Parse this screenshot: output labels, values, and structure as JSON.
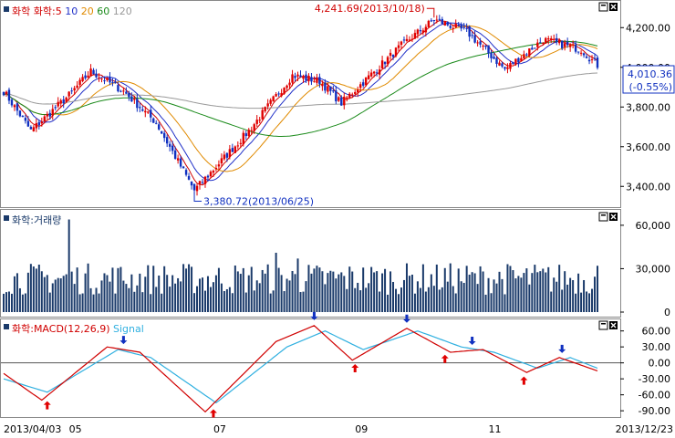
{
  "chart_data": [
    {
      "type": "candlestick",
      "panel": "price",
      "legend": [
        {
          "name": "화학",
          "color": "#d00000"
        },
        {
          "name": "화학:5",
          "color": "#d00000"
        },
        {
          "name": "10",
          "color": "#2030c8"
        },
        {
          "name": "20",
          "color": "#e08a00"
        },
        {
          "name": "60",
          "color": "#1a8a1a"
        },
        {
          "name": "120",
          "color": "#999999"
        }
      ],
      "y_ticks": [
        "4,200.00",
        "4,000.00",
        "3,800.00",
        "3,600.00",
        "3,400.00"
      ],
      "ylim": [
        3300,
        4330
      ],
      "current_value": "4,010.36",
      "current_change": "(-0.55%)",
      "annotations": [
        {
          "label": "4,241.69(2013/10/18)",
          "type": "high"
        },
        {
          "label": "3,380.72(2013/06/25)",
          "type": "low"
        }
      ],
      "key_points": [
        {
          "x": 0,
          "y": 3880
        },
        {
          "x": 10,
          "y": 3680
        },
        {
          "x": 24,
          "y": 3860
        },
        {
          "x": 32,
          "y": 3980
        },
        {
          "x": 44,
          "y": 3880
        },
        {
          "x": 56,
          "y": 3720
        },
        {
          "x": 70,
          "y": 3380
        },
        {
          "x": 90,
          "y": 3680
        },
        {
          "x": 106,
          "y": 3960
        },
        {
          "x": 116,
          "y": 3930
        },
        {
          "x": 124,
          "y": 3820
        },
        {
          "x": 146,
          "y": 4110
        },
        {
          "x": 158,
          "y": 4240
        },
        {
          "x": 170,
          "y": 4180
        },
        {
          "x": 184,
          "y": 3990
        },
        {
          "x": 198,
          "y": 4140
        },
        {
          "x": 212,
          "y": 4090
        },
        {
          "x": 218,
          "y": 4010
        }
      ]
    },
    {
      "type": "bar",
      "panel": "volume",
      "legend": [
        {
          "name": "화학:거래량",
          "color": "#1a3a6a"
        }
      ],
      "y_ticks": [
        "60,000",
        "30,000",
        "0"
      ],
      "ylim": [
        0,
        70000
      ]
    },
    {
      "type": "line",
      "panel": "macd",
      "legend": [
        {
          "name": "화학:MACD(12,26,9)",
          "color": "#d00000"
        },
        {
          "name": "Signal",
          "color": "#30b0e0"
        }
      ],
      "y_ticks": [
        "60.00",
        "30.00",
        "0.00",
        "-30.00",
        "-60.00",
        "-90.00"
      ],
      "ylim": [
        -100,
        80
      ],
      "key_points_macd": [
        {
          "x": 0,
          "y": -20
        },
        {
          "x": 14,
          "y": -70
        },
        {
          "x": 38,
          "y": 30
        },
        {
          "x": 50,
          "y": 20
        },
        {
          "x": 74,
          "y": -92
        },
        {
          "x": 100,
          "y": 40
        },
        {
          "x": 114,
          "y": 70
        },
        {
          "x": 128,
          "y": 5
        },
        {
          "x": 148,
          "y": 65
        },
        {
          "x": 164,
          "y": 20
        },
        {
          "x": 176,
          "y": 25
        },
        {
          "x": 192,
          "y": -18
        },
        {
          "x": 204,
          "y": 10
        },
        {
          "x": 218,
          "y": -15
        }
      ],
      "key_points_signal": [
        {
          "x": 0,
          "y": -30
        },
        {
          "x": 16,
          "y": -55
        },
        {
          "x": 42,
          "y": 25
        },
        {
          "x": 54,
          "y": 10
        },
        {
          "x": 78,
          "y": -75
        },
        {
          "x": 104,
          "y": 30
        },
        {
          "x": 118,
          "y": 60
        },
        {
          "x": 132,
          "y": 25
        },
        {
          "x": 152,
          "y": 60
        },
        {
          "x": 168,
          "y": 30
        },
        {
          "x": 180,
          "y": 20
        },
        {
          "x": 196,
          "y": -10
        },
        {
          "x": 208,
          "y": 10
        },
        {
          "x": 218,
          "y": -10
        }
      ],
      "sell_signals_x": [
        44,
        114,
        148,
        172,
        205
      ],
      "buy_signals_x": [
        16,
        77,
        129,
        162,
        191
      ]
    }
  ],
  "x_axis": {
    "labels": [
      {
        "x": 0,
        "label": "2013/04/03"
      },
      {
        "x": 24,
        "label": "05"
      },
      {
        "x": 77,
        "label": "07"
      },
      {
        "x": 129,
        "label": "09"
      },
      {
        "x": 178,
        "label": "11"
      },
      {
        "x": 218,
        "label": "2013/12/23"
      }
    ],
    "count": 219
  },
  "colors": {
    "up": "#e00000",
    "down": "#1030c0",
    "grid": "#9a9a9a"
  }
}
